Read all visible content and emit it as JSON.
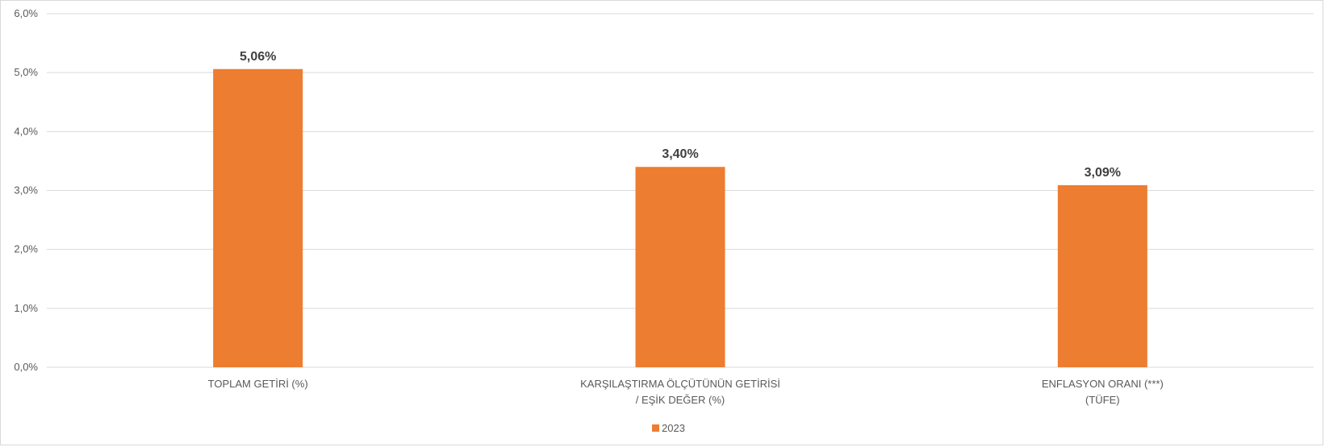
{
  "chart_data": {
    "type": "bar",
    "categories": [
      [
        "TOPLAM GETİRİ (%)"
      ],
      [
        "KARŞILAŞTIRMA ÖLÇÜTÜNÜN GETİRİSİ",
        "/ EŞİK DEĞER (%)"
      ],
      [
        "ENFLASYON ORANI (***)",
        "(TÜFE)"
      ]
    ],
    "series": [
      {
        "name": "2023",
        "values": [
          5.06,
          3.4,
          3.09
        ],
        "labels": [
          "5,06%",
          "3,40%",
          "3,09%"
        ],
        "color": "#ED7D31"
      }
    ],
    "ylim": [
      0,
      6
    ],
    "yticks": [
      0,
      1,
      2,
      3,
      4,
      5,
      6
    ],
    "ytick_labels": [
      "0,0%",
      "1,0%",
      "2,0%",
      "3,0%",
      "4,0%",
      "5,0%",
      "6,0%"
    ],
    "grid": true,
    "legend_position": "bottom",
    "gridline_color": "#d9d9d9"
  }
}
